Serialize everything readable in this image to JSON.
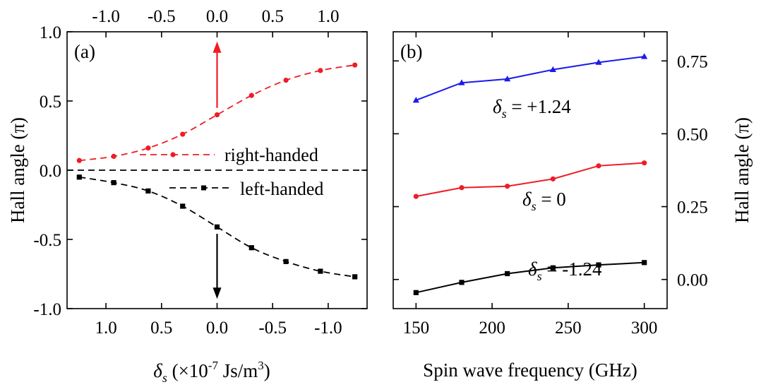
{
  "chart_data": [
    {
      "panel": "(a)",
      "type": "line",
      "ylabel": "Hall angle (π)",
      "xlabel": {
        "symbol": "δ",
        "sub": "s",
        "pre": " (×10",
        "exp": "-7",
        "mid": " Js/m",
        "exp2": "3",
        "post": ")"
      },
      "ylim": [
        -1.0,
        1.0
      ],
      "xlim": [
        1.35,
        -1.35
      ],
      "x_reversed": true,
      "y_ticks": [
        "-1.0",
        "-0.5",
        "0.0",
        "0.5",
        "1.0"
      ],
      "y_tick_values": [
        -1.0,
        -0.5,
        0.0,
        0.5,
        1.0
      ],
      "bottom_ticks": [
        "1.0",
        "0.5",
        "0.0",
        "-0.5",
        "-1.0"
      ],
      "bottom_tick_values": [
        1.0,
        0.5,
        0.0,
        -0.5,
        -1.0
      ],
      "top_ticks": [
        "-1.0",
        "-0.5",
        "0.0",
        "0.5",
        "1.0"
      ],
      "top_tick_values": [
        1.0,
        0.5,
        0.0,
        -0.5,
        -1.0
      ],
      "reference_line_y": 0.0,
      "x": [
        1.24,
        0.93,
        0.62,
        0.31,
        0.0,
        -0.31,
        -0.62,
        -0.93,
        -1.24
      ],
      "series": [
        {
          "name": "right-handed",
          "color": "#ee1c25",
          "marker": "circle",
          "values": [
            0.07,
            0.1,
            0.16,
            0.26,
            0.4,
            0.54,
            0.65,
            0.72,
            0.76
          ]
        },
        {
          "name": "left-handed",
          "color": "#000000",
          "marker": "square",
          "values": [
            -0.05,
            -0.09,
            -0.15,
            -0.26,
            -0.41,
            -0.56,
            -0.66,
            -0.73,
            -0.77
          ]
        }
      ],
      "arrows": [
        {
          "color": "#ee1c25",
          "direction": "up"
        },
        {
          "color": "#000000",
          "direction": "down"
        }
      ]
    },
    {
      "panel": "(b)",
      "type": "line",
      "xlabel": "Spin wave frequency (GHz)",
      "ylabel": "Hall angle (π)",
      "xlim": [
        135,
        315
      ],
      "ylim": [
        -0.1,
        0.85
      ],
      "x_ticks": [
        "150",
        "200",
        "250",
        "300"
      ],
      "x_tick_values": [
        150,
        200,
        250,
        300
      ],
      "y_ticks": [
        "0.00",
        "0.25",
        "0.50",
        "0.75"
      ],
      "y_tick_values": [
        0.0,
        0.25,
        0.5,
        0.75
      ],
      "y_axis_side": "right",
      "x": [
        150,
        180,
        210,
        240,
        270,
        300
      ],
      "series": [
        {
          "label": {
            "symbol": "δ",
            "sub": "s",
            "text": " = +1.24"
          },
          "color": "#1a1aee",
          "marker": "triangle",
          "values": [
            0.615,
            0.675,
            0.688,
            0.72,
            0.745,
            0.765
          ]
        },
        {
          "label": {
            "symbol": "δ",
            "sub": "s",
            "text": " = 0"
          },
          "color": "#ee1c25",
          "marker": "circle",
          "values": [
            0.285,
            0.315,
            0.32,
            0.345,
            0.39,
            0.4
          ]
        },
        {
          "label": {
            "symbol": "δ",
            "sub": "s",
            "text": " = -1.24"
          },
          "color": "#000000",
          "marker": "square",
          "values": [
            -0.045,
            -0.01,
            0.02,
            0.04,
            0.05,
            0.058
          ]
        }
      ]
    }
  ]
}
